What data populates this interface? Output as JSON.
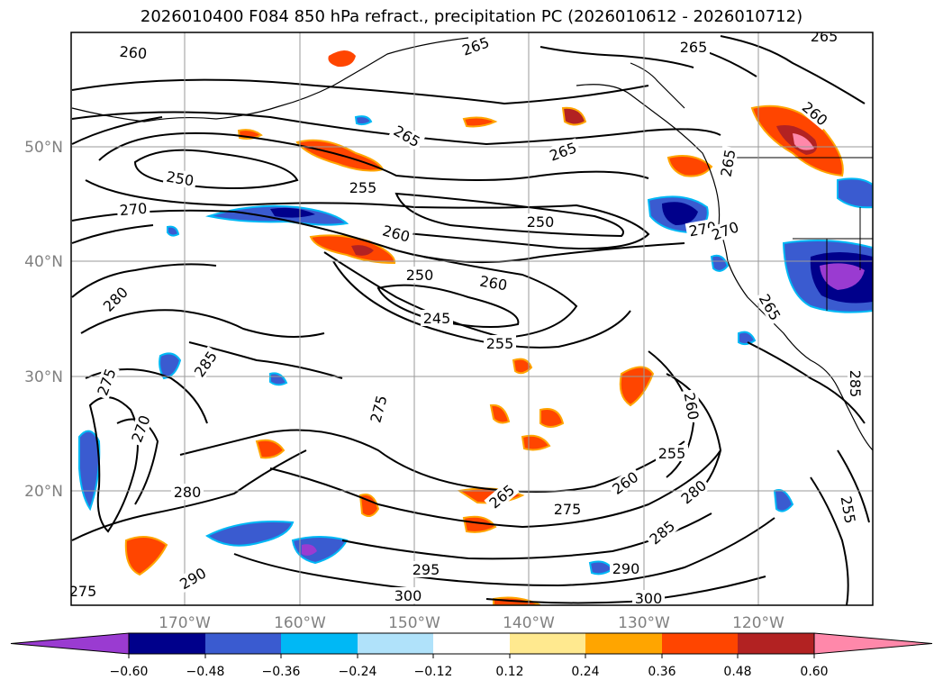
{
  "title": "2026010400 F084 850 hPa refract., precipitation PC (2026010612 - 2026010712)",
  "lat_labels": [
    "50°N",
    "40°N",
    "30°N",
    "20°N"
  ],
  "lon_labels": [
    "170°W",
    "160°W",
    "150°W",
    "140°W",
    "130°W",
    "120°W"
  ],
  "colorbar": {
    "ticks": [
      "−0.60",
      "−0.48",
      "−0.36",
      "−0.24",
      "−0.12",
      "0.12",
      "0.24",
      "0.36",
      "0.48",
      "0.60"
    ],
    "colors": [
      "#9a3bd1",
      "#00008b",
      "#3a5bd0",
      "#00b8f5",
      "#b0e2fa",
      "#ffffff",
      "#ffe98f",
      "#ffa500",
      "#ff4500",
      "#b22222",
      "#ff88aa",
      "#ff88aa"
    ]
  },
  "contour_labels": [
    "260",
    "265",
    "265",
    "265",
    "265",
    "250",
    "255",
    "265",
    "270",
    "250",
    "260",
    "270",
    "250",
    "260",
    "280",
    "245",
    "255",
    "285",
    "270",
    "275",
    "275",
    "280",
    "290",
    "260",
    "255",
    "260",
    "280",
    "285",
    "290",
    "295",
    "300",
    "300",
    "275",
    "265",
    "275",
    "265",
    "260",
    "255",
    "270",
    "265",
    "285"
  ]
}
